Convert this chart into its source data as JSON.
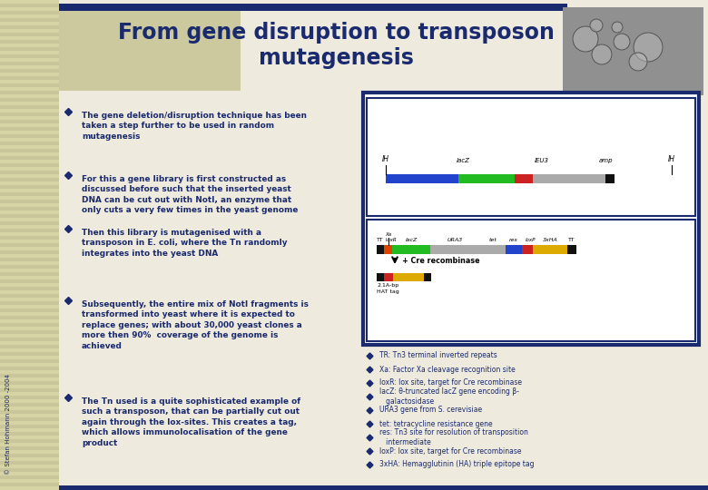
{
  "title": "From gene disruption to transposon\nmutagenesis",
  "bg_stripe1": "#d6d3a5",
  "bg_stripe2": "#c9c69b",
  "header_bar_color": "#1a2a6e",
  "slide_bg": "#eeeade",
  "title_color": "#1a2a6e",
  "bullet_color": "#1a2a6e",
  "text_color": "#1a2a6e",
  "left_panel_bullets": [
    "The gene deletion/disruption technique has been\ntaken a step further to be used in random\nmutagenesis",
    "For this a gene library is first constructed as\ndiscussed before such that the inserted yeast\nDNA can be cut out with NotI, an enzyme that\nonly cuts a very few times in the yeast genome",
    "Then this library is mutagenised with a\ntransposon in E. coli, where the Tn randomly\nintegrates into the yeast DNA",
    "Subsequently, the entire mix of NotI fragments is\ntransformed into yeast where it is expected to\nreplace genes; with about 30,000 yeast clones a\nmore then 90%  coverage of the genome is\nachieved",
    "The Tn used is a quite sophisticated example of\nsuch a transposon, that can be partially cut out\nagain through the lox-sites. This creates a tag,\nwhich allows immunolocalisation of the gene\nproduct"
  ],
  "right_bullets": [
    "TR: Tn3 terminal inverted repeats",
    "Xa: Factor Xa cleavage recognition site",
    "loxR: lox site, target for Cre recombinase",
    "lacZ: θ-truncated lacZ gene encoding β-\n   galactosidase",
    "URA3 gene from S. cerevisiae",
    "tet: tetracycline resistance gene",
    "res: Tn3 site for resolution of transposition\n   intermediate",
    "loxP: lox site, target for Cre recombinase",
    "3xHA: Hemagglutinin (HA) triple epitope tag"
  ],
  "copyright": "© Stefan Hohmann 2000 -2004",
  "diagram_border_color": "#1a2a6e",
  "diagram_bg": "#ffffff"
}
